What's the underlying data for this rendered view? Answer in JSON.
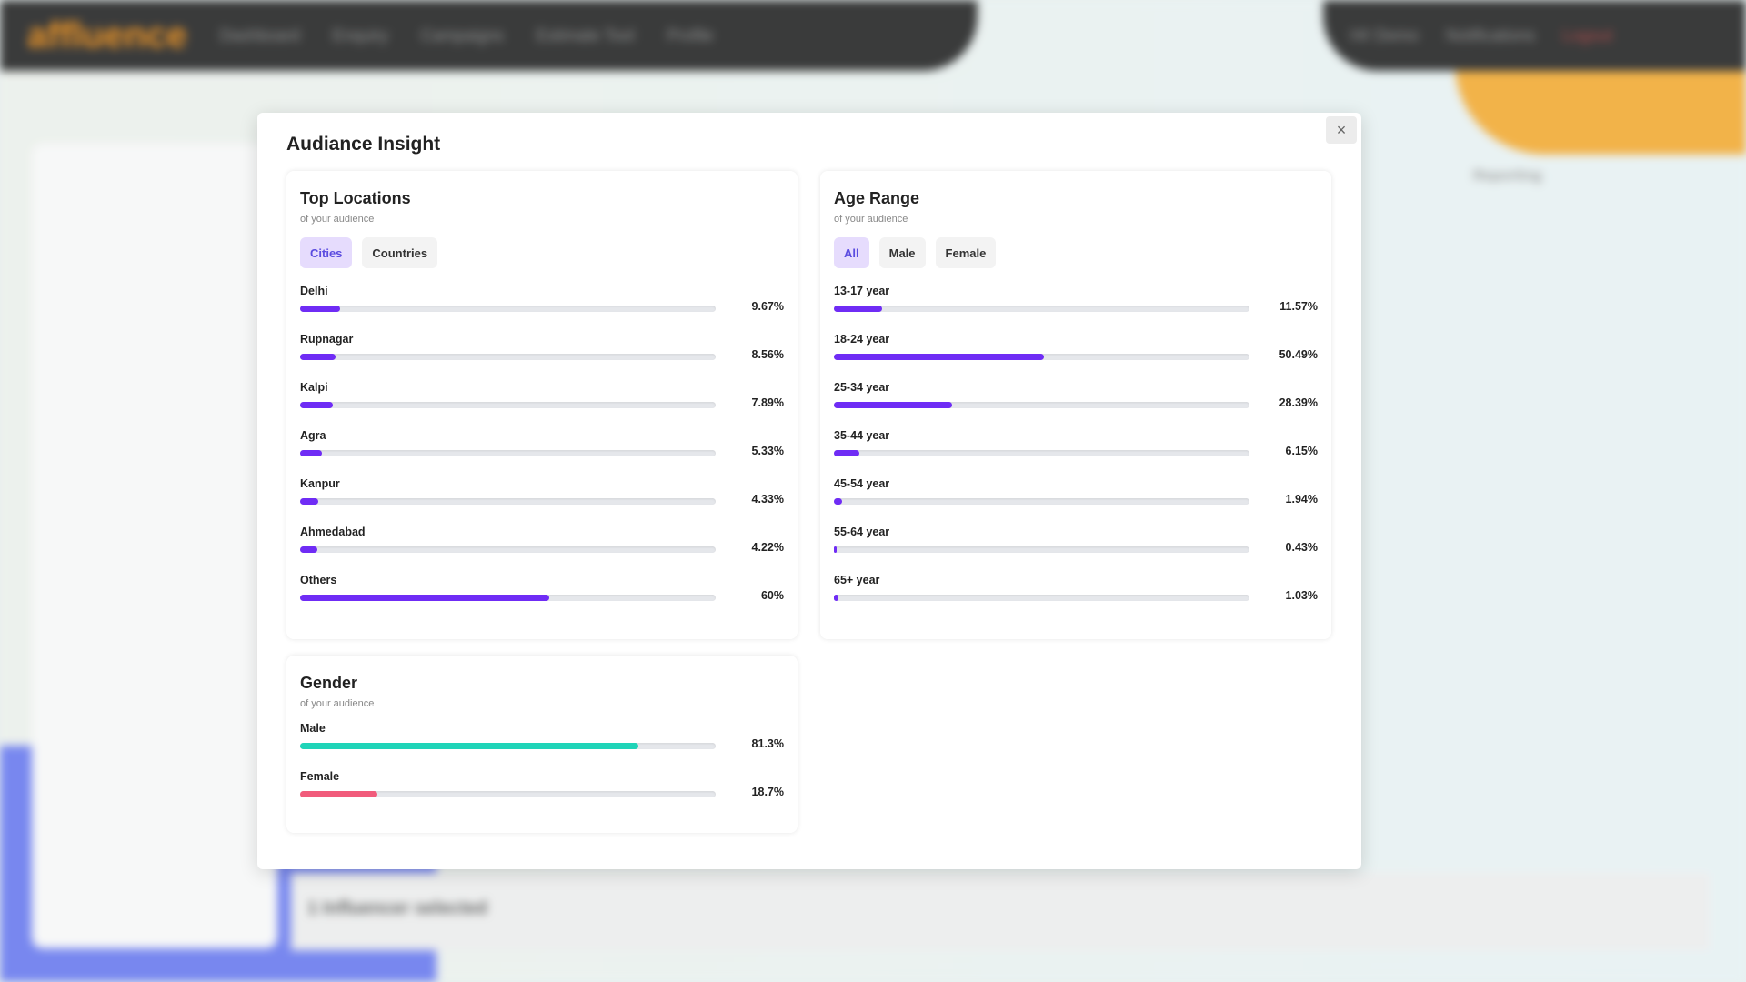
{
  "background": {
    "logo": "affluence",
    "nav": [
      "Dashboard",
      "Enquiry",
      "Campaigns",
      "Estimate Tool",
      "Profile"
    ],
    "user": "Hi! Demo",
    "notifications": "Notifications",
    "logout": "Logout",
    "selected": "1 Influencer selected",
    "status": "Reporting"
  },
  "modal": {
    "title": "Audiance Insight",
    "close_label": "×"
  },
  "colors": {
    "accent": "#6f2cf5",
    "male": "#1fd4b8",
    "female": "#f15b7b"
  },
  "locations": {
    "title": "Top Locations",
    "subtitle": "of your audience",
    "tabs": [
      {
        "label": "Cities",
        "active": true
      },
      {
        "label": "Countries",
        "active": false
      }
    ],
    "items": [
      {
        "label": "Delhi",
        "value": "9.67%",
        "pct": 9.67
      },
      {
        "label": "Rupnagar",
        "value": "8.56%",
        "pct": 8.56
      },
      {
        "label": "Kalpi",
        "value": "7.89%",
        "pct": 7.89
      },
      {
        "label": "Agra",
        "value": "5.33%",
        "pct": 5.33
      },
      {
        "label": "Kanpur",
        "value": "4.33%",
        "pct": 4.33
      },
      {
        "label": "Ahmedabad",
        "value": "4.22%",
        "pct": 4.22
      },
      {
        "label": "Others",
        "value": "60%",
        "pct": 60
      }
    ]
  },
  "age": {
    "title": "Age Range",
    "subtitle": "of your audience",
    "tabs": [
      {
        "label": "All",
        "active": true
      },
      {
        "label": "Male",
        "active": false
      },
      {
        "label": "Female",
        "active": false
      }
    ],
    "items": [
      {
        "label": "13-17 year",
        "value": "11.57%",
        "pct": 11.57
      },
      {
        "label": "18-24 year",
        "value": "50.49%",
        "pct": 50.49
      },
      {
        "label": "25-34 year",
        "value": "28.39%",
        "pct": 28.39
      },
      {
        "label": "35-44 year",
        "value": "6.15%",
        "pct": 6.15
      },
      {
        "label": "45-54 year",
        "value": "1.94%",
        "pct": 1.94
      },
      {
        "label": "55-64 year",
        "value": "0.43%",
        "pct": 0.43
      },
      {
        "label": "65+ year",
        "value": "1.03%",
        "pct": 1.03
      }
    ]
  },
  "gender": {
    "title": "Gender",
    "subtitle": "of your audience",
    "items": [
      {
        "label": "Male",
        "value": "81.3%",
        "pct": 81.3
      },
      {
        "label": "Female",
        "value": "18.7%",
        "pct": 18.7
      }
    ]
  }
}
